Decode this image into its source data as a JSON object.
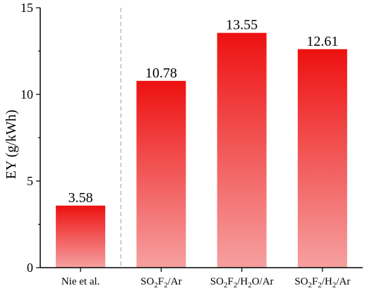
{
  "chart_data": {
    "type": "bar",
    "categories": [
      "Nie et al.",
      "SO2F2/Ar",
      "SO2F2/H2O/Ar",
      "SO2F2/H2/Ar"
    ],
    "category_parts": [
      [
        [
          "Nie et al.",
          false
        ]
      ],
      [
        [
          "SO",
          false
        ],
        [
          "2",
          true
        ],
        [
          "F",
          false
        ],
        [
          "2",
          true
        ],
        [
          "/Ar",
          false
        ]
      ],
      [
        [
          "SO",
          false
        ],
        [
          "2",
          true
        ],
        [
          "F",
          false
        ],
        [
          "2",
          true
        ],
        [
          "/H",
          false
        ],
        [
          "2",
          true
        ],
        [
          "O/Ar",
          false
        ]
      ],
      [
        [
          "SO",
          false
        ],
        [
          "2",
          true
        ],
        [
          "F",
          false
        ],
        [
          "2",
          true
        ],
        [
          "/H",
          false
        ],
        [
          "2",
          true
        ],
        [
          "/Ar",
          false
        ]
      ]
    ],
    "values": [
      3.58,
      10.78,
      13.55,
      12.61
    ],
    "value_labels": [
      "3.58",
      "10.78",
      "13.55",
      "12.61"
    ],
    "ylabel": "EY (g/kWh)",
    "ylim": [
      0,
      15
    ],
    "yticks": [
      0,
      5,
      10,
      15
    ],
    "ytick_labels": [
      "0",
      "5",
      "10",
      "15"
    ],
    "grid": false,
    "bar_color_top": "#ee1111",
    "bar_color_bottom": "#f6a0a0",
    "divider": "dashed line between Nie et al. and SO2F2/Ar"
  }
}
